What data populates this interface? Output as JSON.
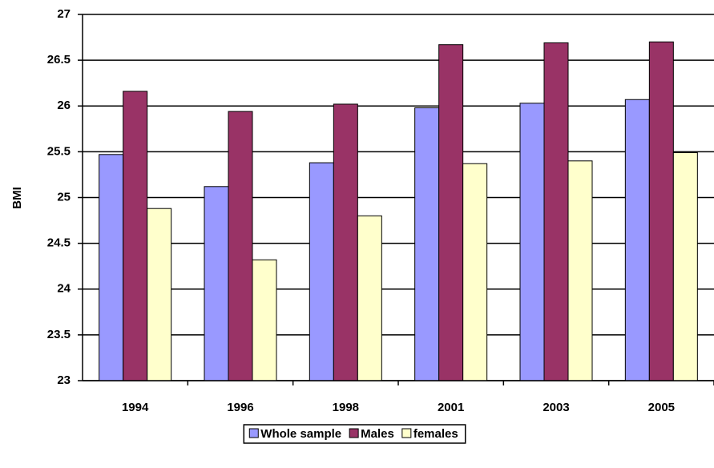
{
  "chart_data": {
    "type": "bar",
    "categories": [
      "1994",
      "1996",
      "1998",
      "2001",
      "2003",
      "2005"
    ],
    "series": [
      {
        "name": "Whole sample",
        "color": "#9999ff",
        "values": [
          25.47,
          25.12,
          25.38,
          25.98,
          26.03,
          26.07
        ]
      },
      {
        "name": "Males",
        "color": "#993366",
        "values": [
          26.16,
          25.94,
          26.02,
          26.67,
          26.69,
          26.7
        ]
      },
      {
        "name": "females",
        "color": "#ffffcc",
        "values": [
          24.88,
          24.32,
          24.8,
          25.37,
          25.4,
          25.49
        ]
      }
    ],
    "y_label": "BMI",
    "ylim": [
      23,
      27
    ],
    "yticks": [
      23,
      23.5,
      24,
      24.5,
      25,
      25.5,
      26,
      26.5,
      27
    ],
    "grid": true,
    "legend": "bottom"
  }
}
